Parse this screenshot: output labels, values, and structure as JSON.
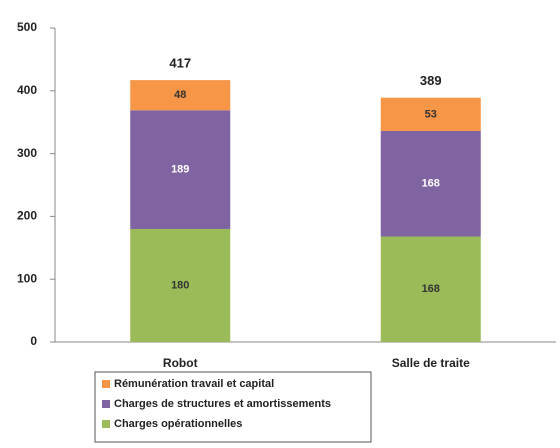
{
  "chart_data": {
    "type": "stacked_bar",
    "categories": [
      "Robot",
      "Salle de traite"
    ],
    "series": [
      {
        "name": "Charges opérationnelles",
        "color": "#9bbb59",
        "values": [
          180,
          168
        ]
      },
      {
        "name": "Charges de structures et amortissements",
        "color": "#8064a2",
        "values": [
          189,
          168
        ]
      },
      {
        "name": "Rémunération travail et capital",
        "color": "#f79646",
        "values": [
          48,
          53
        ]
      }
    ],
    "totals": [
      417,
      389
    ],
    "ylim": [
      0,
      500
    ],
    "yticks": [
      0,
      100,
      200,
      300,
      400,
      500
    ]
  }
}
